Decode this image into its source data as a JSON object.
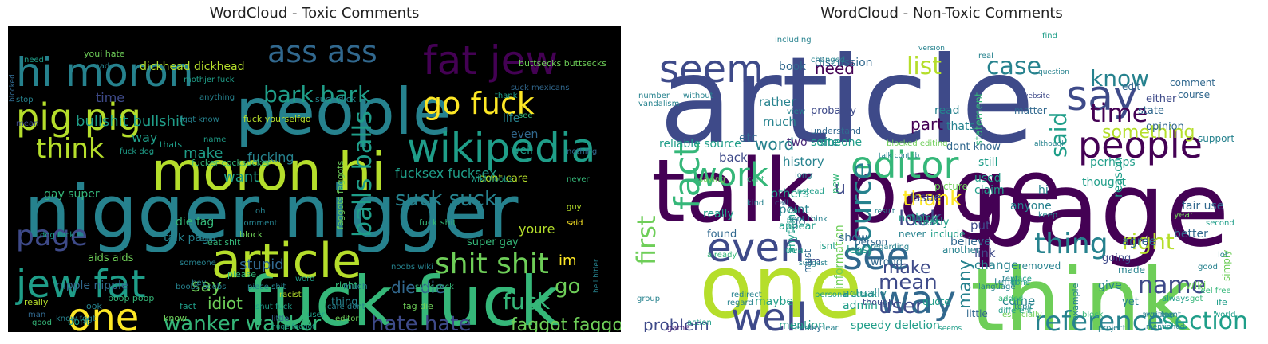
{
  "figure": {
    "left_title": "WordCloud - Toxic Comments",
    "right_title": "WordCloud - Non-Toxic Comments",
    "left_background": "#000000",
    "right_background": "#ffffff",
    "palette": [
      "#440154",
      "#482878",
      "#3e4a89",
      "#31688e",
      "#26828e",
      "#1f9e89",
      "#35b779",
      "#6ece58",
      "#b5de2b",
      "#fde725"
    ]
  },
  "toxic_words": [
    "nigger nigger",
    "fuck fuck",
    "people",
    "moron hi",
    "hi moron",
    "article",
    "pig pig",
    "fat jew",
    "ass ass",
    "jew fat",
    "go fuck",
    "wikipedia",
    "shit shit",
    "bark bark",
    "one",
    "think",
    "page",
    "balls balls",
    "wanker wanker",
    "hate hate",
    "fuck",
    "go",
    "faggot faggot",
    "bullshit bullshit",
    "suck suck",
    "fucksex fucksex",
    "die die",
    "say",
    "fucking",
    "make",
    "want",
    "way",
    "time",
    "life",
    "even",
    "well",
    "idiot",
    "stupid",
    "im",
    "youre",
    "nipple nipple",
    "talk page",
    "aids aids",
    "dont care",
    "super gay",
    "die fag",
    "fag die",
    "gay super",
    "dickhead dickhead",
    "faggots faggots",
    "buttsecks buttsecks",
    "suck dick",
    "fuck yourselfgo",
    "fuck shit",
    "fucker cocksucker",
    "dont",
    "look",
    "right",
    "thing",
    "really",
    "fact",
    "know",
    "poop poop",
    "heil hitler",
    "eat shit",
    "huge faggot",
    "suck cock",
    "shut fuck",
    "racist",
    "please",
    "edit",
    "block",
    "comment",
    "oh",
    "said",
    "never",
    "guy",
    "suck mexicans",
    "mothjer fuck",
    "thank",
    "see",
    "thats",
    "nothing",
    "name",
    "boobs boobs",
    "hey",
    "know fggt",
    "fggt know",
    "little",
    "word",
    "good",
    "man",
    "need",
    "youi hate",
    "made",
    "stop",
    "mean",
    "blocked",
    "wiki noobs",
    "noobs wiki",
    "piece shit",
    "someone",
    "anything",
    "user",
    "much",
    "care dont",
    "editor",
    "dog fuck",
    "fuck dog"
  ],
  "nontoxic_words": [
    "article",
    "talk page",
    "page",
    "one",
    "think",
    "say",
    "people",
    "seem",
    "editor",
    "even",
    "see",
    "way",
    "well",
    "fact",
    "work",
    "time",
    "list",
    "case",
    "know",
    "said",
    "source",
    "first",
    "thing",
    "reference",
    "section",
    "right",
    "name",
    "mean",
    "user",
    "look",
    "problem",
    "make",
    "thank",
    "something",
    "many",
    "need",
    "part",
    "word",
    "u",
    "history",
    "two",
    "much",
    "rather",
    "etc",
    "back",
    "discussion",
    "book",
    "site",
    "issue",
    "link",
    "change",
    "come",
    "put",
    "believe",
    "agree",
    "reason",
    "point",
    "others",
    "go",
    "anything",
    "actually",
    "admin",
    "speedy deletion",
    "maybe",
    "mention",
    "information",
    "someone",
    "still",
    "thats",
    "read",
    "used",
    "claim",
    "anyone",
    "picture",
    "perhaps",
    "thought",
    "opinion",
    "state",
    "either",
    "edit",
    "comment",
    "course",
    "support",
    "fair use",
    "better",
    "give",
    "yet",
    "made",
    "going",
    "example",
    "removed",
    "wiki",
    "simply",
    "year",
    "hi",
    "nothing",
    "clearly",
    "show",
    "wrong",
    "least",
    "include",
    "another",
    "never",
    "person",
    "isnt",
    "new",
    "found",
    "really",
    "appear",
    "idea",
    "probably",
    "statement",
    "quote",
    "vandalism",
    "number",
    "reliable source",
    "dont know",
    "understand",
    "matter",
    "including",
    "changed",
    "version",
    "website",
    "blocked editing",
    "personal attack",
    "im",
    "must",
    "though",
    "little",
    "regarding",
    "question",
    "already",
    "regard",
    "game",
    "action",
    "day",
    "long",
    "instead",
    "call",
    "dont think",
    "kind",
    "cant",
    "saying",
    "without",
    "view",
    "feel free",
    "topic",
    "especially",
    "added",
    "text",
    "term",
    "different",
    "place",
    "second",
    "good",
    "lot",
    "project",
    "written",
    "life",
    "world",
    "always",
    "got",
    "block",
    "argument",
    "mentioned",
    "find",
    "end",
    "seems",
    "real",
    "done",
    "result",
    "suggest",
    "group",
    "keep",
    "language",
    "redirect",
    "although",
    "clear",
    "talk contrib"
  ]
}
